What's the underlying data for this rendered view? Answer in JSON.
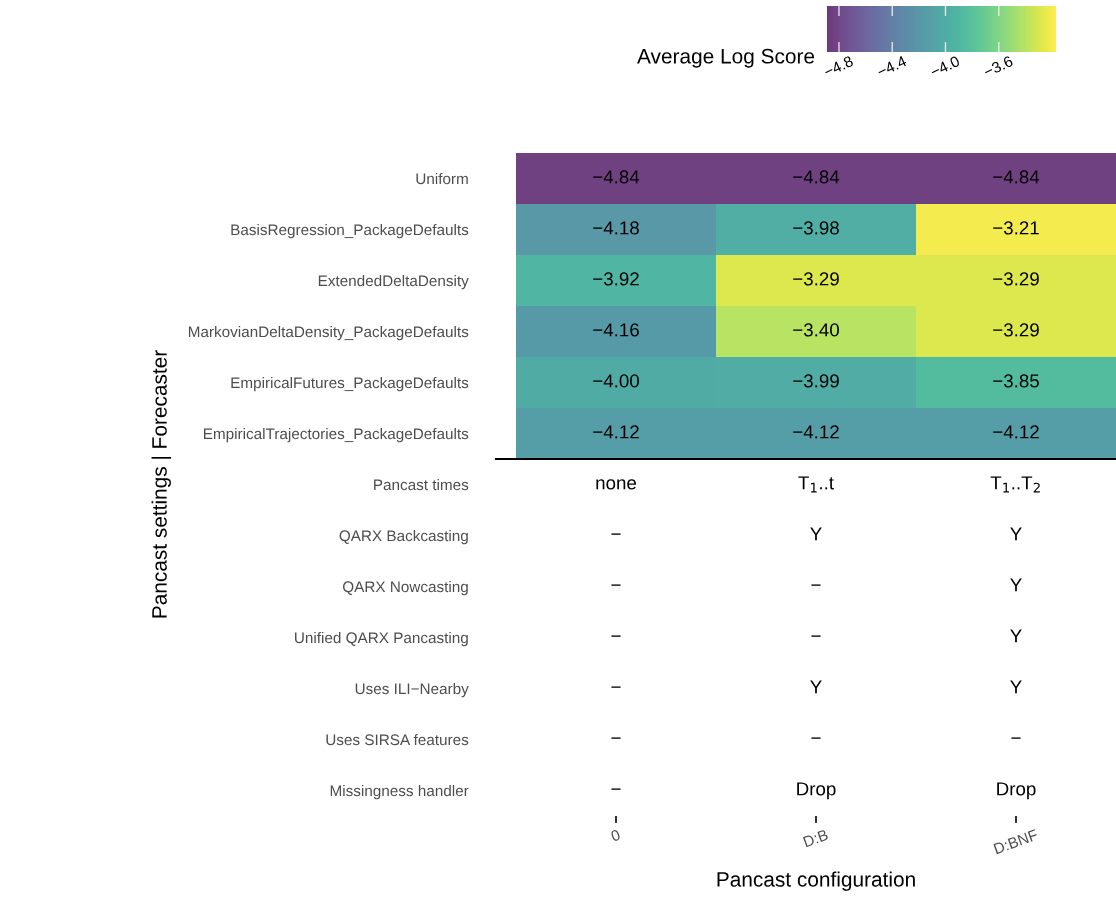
{
  "chart_data": {
    "type": "heatmap",
    "categories": [
      "0",
      "D:B",
      "D:BNF"
    ],
    "y_categories": [
      "Uniform",
      "BasisRegression_PackageDefaults",
      "ExtendedDeltaDensity",
      "MarkovianDeltaDensity_PackageDefaults",
      "EmpiricalFutures_PackageDefaults",
      "EmpiricalTrajectories_PackageDefaults",
      "Pancast times",
      "QARX Backcasting",
      "QARX Nowcasting",
      "Unified QARX Pancasting",
      "Uses ILI−Nearby",
      "Uses SIRSA features",
      "Missingness handler"
    ],
    "cells": [
      [
        -4.84,
        -4.84,
        -4.84
      ],
      [
        -4.18,
        -3.98,
        -3.21
      ],
      [
        -3.92,
        -3.29,
        -3.29
      ],
      [
        -4.16,
        -3.4,
        -3.29
      ],
      [
        -4.0,
        -3.99,
        -3.85
      ],
      [
        -4.12,
        -4.12,
        -4.12
      ],
      [
        null,
        null,
        null
      ],
      [
        null,
        null,
        null
      ],
      [
        null,
        null,
        null
      ],
      [
        null,
        null,
        null
      ],
      [
        null,
        null,
        null
      ],
      [
        null,
        null,
        null
      ],
      [
        null,
        null,
        null
      ]
    ],
    "cell_labels": [
      [
        "−4.84",
        "−4.84",
        "−4.84"
      ],
      [
        "−4.18",
        "−3.98",
        "−3.21"
      ],
      [
        "−3.92",
        "−3.29",
        "−3.29"
      ],
      [
        "−4.16",
        "−3.40",
        "−3.29"
      ],
      [
        "−4.00",
        "−3.99",
        "−3.85"
      ],
      [
        "−4.12",
        "−4.12",
        "−4.12"
      ],
      [
        "none",
        "T$_{1}$..t",
        "T$_{1}$..T$_{2}$"
      ],
      [
        "−",
        "Y",
        "Y"
      ],
      [
        "−",
        "−",
        "Y"
      ],
      [
        "−",
        "−",
        "Y"
      ],
      [
        "−",
        "Y",
        "Y"
      ],
      [
        "−",
        "−",
        "−"
      ],
      [
        "−",
        "Drop",
        "Drop"
      ]
    ],
    "clim": [
      -4.89,
      -3.17
    ],
    "cticks": [
      {
        "value": -4.8,
        "label": "−4.8"
      },
      {
        "value": -4.4,
        "label": "−4.4"
      },
      {
        "value": -4.0,
        "label": "−4.0"
      },
      {
        "value": -3.6,
        "label": "−3.6"
      }
    ],
    "clabel": "Average Log Score",
    "xlabel": "Pancast configuration",
    "ylabel": "Pancast settings | Forecaster",
    "grid": false
  }
}
